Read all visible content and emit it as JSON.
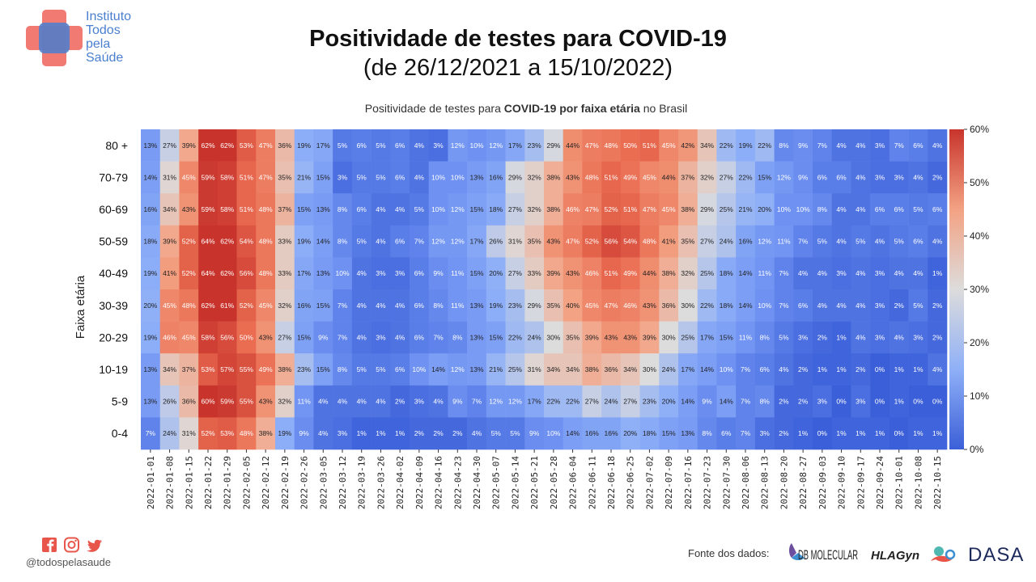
{
  "logo": {
    "lines": [
      "Instituto",
      "Todos",
      "pela",
      "Saúde"
    ]
  },
  "header": {
    "title": "Positividade de testes para COVID-19",
    "subtitle": "(de 26/12/2021 a 15/10/2022)"
  },
  "chart_title": {
    "part1": "Positividade de testes para ",
    "part2": "COVID-19 por faixa etária",
    "part3": " no Brasil"
  },
  "chart_data": {
    "type": "heatmap",
    "ylabel": "Faixa etária",
    "xlabel": "",
    "colorbar": {
      "min": 0,
      "max": 60,
      "ticks": [
        "0%",
        "10%",
        "20%",
        "30%",
        "40%",
        "50%",
        "60%"
      ]
    },
    "rows": [
      "80 +",
      "70-79",
      "60-69",
      "50-59",
      "40-49",
      "30-39",
      "20-29",
      "10-19",
      "5-9",
      "0-4"
    ],
    "columns": [
      "2022-01-01",
      "2022-01-08",
      "2022-01-15",
      "2022-01-22",
      "2022-01-29",
      "2022-02-05",
      "2022-02-12",
      "2022-02-19",
      "2022-02-26",
      "2022-03-05",
      "2022-03-12",
      "2022-03-19",
      "2022-03-26",
      "2022-04-02",
      "2022-04-09",
      "2022-04-16",
      "2022-04-23",
      "2022-04-30",
      "2022-05-07",
      "2022-05-14",
      "2022-05-21",
      "2022-05-28",
      "2022-06-04",
      "2022-06-11",
      "2022-06-18",
      "2022-06-25",
      "2022-07-02",
      "2022-07-09",
      "2022-07-16",
      "2022-07-23",
      "2022-07-30",
      "2022-08-06",
      "2022-08-13",
      "2022-08-20",
      "2022-08-27",
      "2022-09-03",
      "2022-09-10",
      "2022-09-17",
      "2022-09-24",
      "2022-10-01",
      "2022-10-08",
      "2022-10-15"
    ],
    "values": [
      [
        13,
        27,
        39,
        62,
        62,
        53,
        47,
        36,
        19,
        17,
        5,
        6,
        5,
        6,
        4,
        3,
        12,
        10,
        12,
        17,
        23,
        29,
        44,
        47,
        48,
        50,
        51,
        45,
        42,
        34,
        22,
        19,
        22,
        8,
        9,
        7,
        4,
        4,
        3,
        7,
        6,
        4
      ],
      [
        14,
        31,
        45,
        59,
        58,
        51,
        47,
        35,
        21,
        15,
        3,
        5,
        5,
        6,
        4,
        10,
        10,
        13,
        16,
        29,
        32,
        38,
        43,
        48,
        51,
        49,
        45,
        44,
        37,
        32,
        27,
        22,
        15,
        12,
        9,
        6,
        6,
        4,
        3,
        3,
        4,
        2
      ],
      [
        16,
        34,
        43,
        59,
        58,
        51,
        48,
        37,
        15,
        13,
        8,
        6,
        4,
        4,
        5,
        10,
        12,
        15,
        18,
        27,
        32,
        38,
        46,
        47,
        52,
        51,
        47,
        45,
        38,
        29,
        25,
        21,
        20,
        10,
        10,
        8,
        4,
        4,
        6,
        6,
        5,
        6
      ],
      [
        18,
        39,
        52,
        64,
        62,
        54,
        48,
        33,
        19,
        14,
        8,
        5,
        4,
        6,
        7,
        12,
        12,
        17,
        26,
        31,
        35,
        43,
        47,
        52,
        56,
        54,
        48,
        41,
        35,
        27,
        24,
        16,
        12,
        11,
        7,
        5,
        4,
        5,
        4,
        5,
        6,
        4
      ],
      [
        19,
        41,
        52,
        64,
        62,
        56,
        48,
        33,
        17,
        13,
        10,
        4,
        3,
        3,
        6,
        9,
        11,
        15,
        20,
        27,
        33,
        39,
        43,
        46,
        51,
        49,
        44,
        38,
        32,
        25,
        18,
        14,
        11,
        7,
        4,
        4,
        3,
        4,
        3,
        4,
        4,
        1
      ],
      [
        20,
        45,
        48,
        62,
        61,
        52,
        45,
        32,
        16,
        15,
        7,
        4,
        4,
        4,
        6,
        8,
        11,
        13,
        19,
        23,
        29,
        35,
        40,
        45,
        47,
        46,
        43,
        36,
        30,
        22,
        18,
        14,
        10,
        7,
        6,
        4,
        4,
        4,
        3,
        2,
        5,
        2
      ],
      [
        19,
        46,
        45,
        58,
        56,
        50,
        43,
        27,
        15,
        9,
        7,
        4,
        3,
        4,
        6,
        7,
        8,
        13,
        15,
        22,
        24,
        30,
        35,
        39,
        43,
        43,
        39,
        30,
        25,
        17,
        15,
        11,
        8,
        5,
        3,
        2,
        1,
        4,
        3,
        4,
        3,
        2
      ],
      [
        13,
        34,
        37,
        53,
        57,
        55,
        49,
        38,
        23,
        15,
        8,
        5,
        5,
        6,
        10,
        14,
        12,
        13,
        21,
        25,
        31,
        34,
        34,
        38,
        36,
        34,
        30,
        24,
        17,
        14,
        10,
        7,
        6,
        4,
        2,
        1,
        1,
        2,
        0,
        1,
        1,
        4
      ],
      [
        13,
        26,
        36,
        60,
        59,
        55,
        43,
        32,
        11,
        4,
        4,
        4,
        4,
        2,
        3,
        4,
        9,
        7,
        12,
        12,
        17,
        22,
        22,
        27,
        24,
        27,
        23,
        20,
        14,
        9,
        14,
        7,
        8,
        2,
        2,
        3,
        0,
        3,
        0,
        1,
        0,
        0
      ],
      [
        7,
        24,
        31,
        52,
        53,
        48,
        38,
        19,
        9,
        4,
        3,
        1,
        1,
        1,
        2,
        2,
        2,
        4,
        5,
        5,
        9,
        10,
        14,
        16,
        16,
        20,
        18,
        15,
        13,
        8,
        6,
        7,
        3,
        2,
        1,
        0,
        1,
        1,
        1,
        0,
        1,
        1
      ]
    ]
  },
  "footer": {
    "handle": "@todospelasaude",
    "fonte_label": "Fonte dos dados:",
    "partners": [
      "DB MOLECULAR",
      "HLAGyn",
      "DASA"
    ]
  },
  "colors": {
    "brand_blue": "#4a7fd0",
    "brand_red": "#e8564b",
    "social_red": "#e8564b"
  }
}
